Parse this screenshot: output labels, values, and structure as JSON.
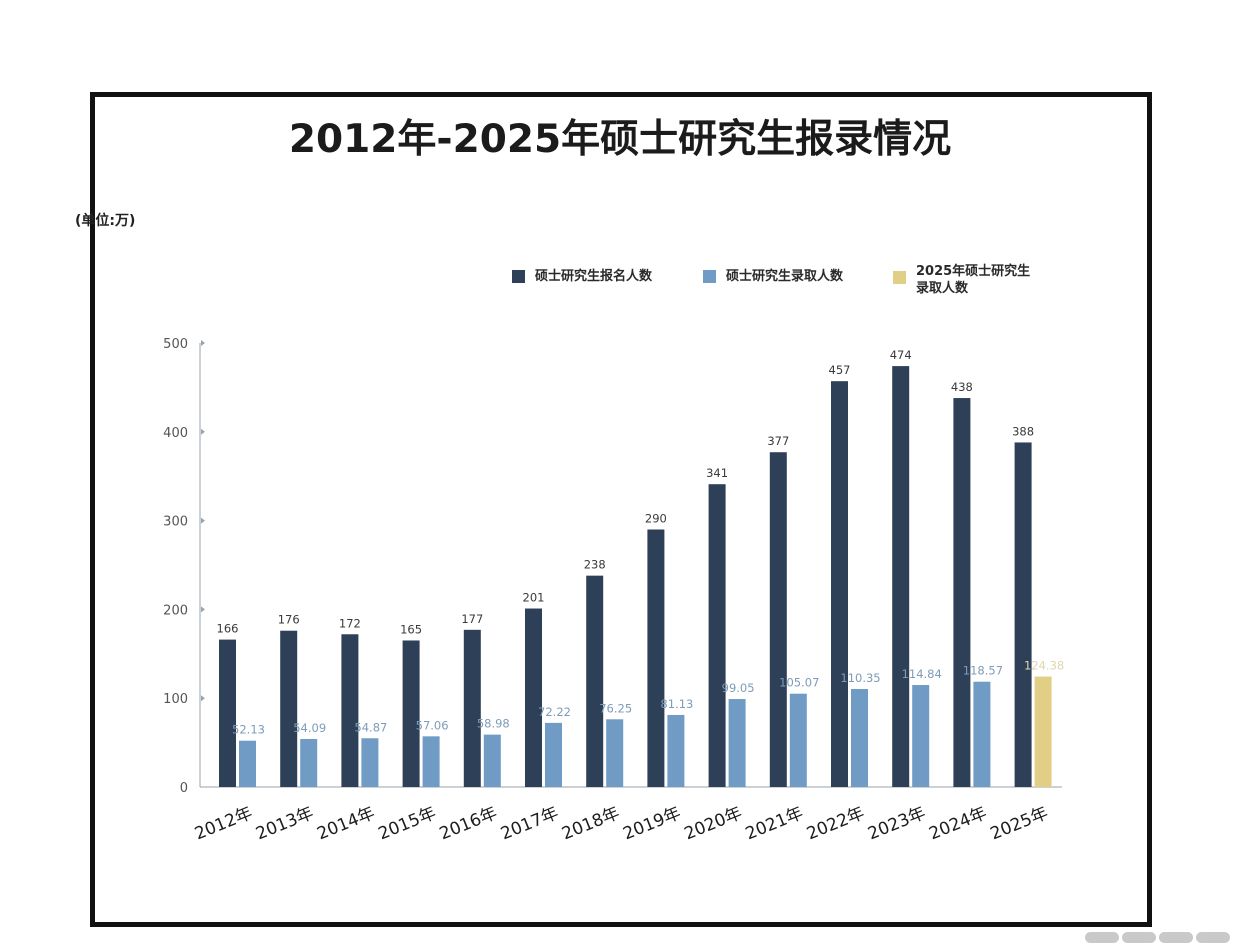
{
  "title": "2012年-2025年硕士研究生报录情况",
  "unit_label": "(单位:万)",
  "colors": {
    "applicants": "#2e4057",
    "admitted": "#6f9bc4",
    "admitted_2025": "#e2cf86",
    "axis": "#9aa3ad",
    "tick_text": "#555555",
    "admit_label": "#7d9cb8"
  },
  "chart_data": {
    "type": "bar",
    "title": "2012年-2025年硕士研究生报录情况",
    "ylabel": "(单位:万)",
    "ylim": [
      0,
      500
    ],
    "yticks": [
      0,
      100,
      200,
      300,
      400,
      500
    ],
    "legend_position": "top-right",
    "categories": [
      "2012年",
      "2013年",
      "2014年",
      "2015年",
      "2016年",
      "2017年",
      "2018年",
      "2019年",
      "2020年",
      "2021年",
      "2022年",
      "2023年",
      "2024年",
      "2025年"
    ],
    "series": [
      {
        "name": "硕士研究生报名人数",
        "values": [
          166,
          176,
          172,
          165,
          177,
          201,
          238,
          290,
          341,
          377,
          457,
          474,
          438,
          388
        ],
        "labels": [
          "166",
          "176",
          "172",
          "165",
          "177",
          "201",
          "238",
          "290",
          "341",
          "377",
          "457",
          "474",
          "438",
          "388"
        ]
      },
      {
        "name": "硕士研究生录取人数",
        "values": [
          52.13,
          54.09,
          54.87,
          57.06,
          58.98,
          72.22,
          76.25,
          81.13,
          99.05,
          105.07,
          110.35,
          114.84,
          118.57,
          null
        ],
        "labels": [
          "52.13",
          "54.09",
          "54.87",
          "57.06",
          "58.98",
          "72.22",
          "76.25",
          "81.13",
          "99.05",
          "105.07",
          "110.35",
          "114.84",
          "118.57",
          ""
        ]
      },
      {
        "name": "2025年硕士研究生录取人数",
        "values": [
          null,
          null,
          null,
          null,
          null,
          null,
          null,
          null,
          null,
          null,
          null,
          null,
          null,
          124.38
        ],
        "labels": [
          "",
          "",
          "",
          "",
          "",
          "",
          "",
          "",
          "",
          "",
          "",
          "",
          "",
          "124.38"
        ]
      }
    ]
  }
}
